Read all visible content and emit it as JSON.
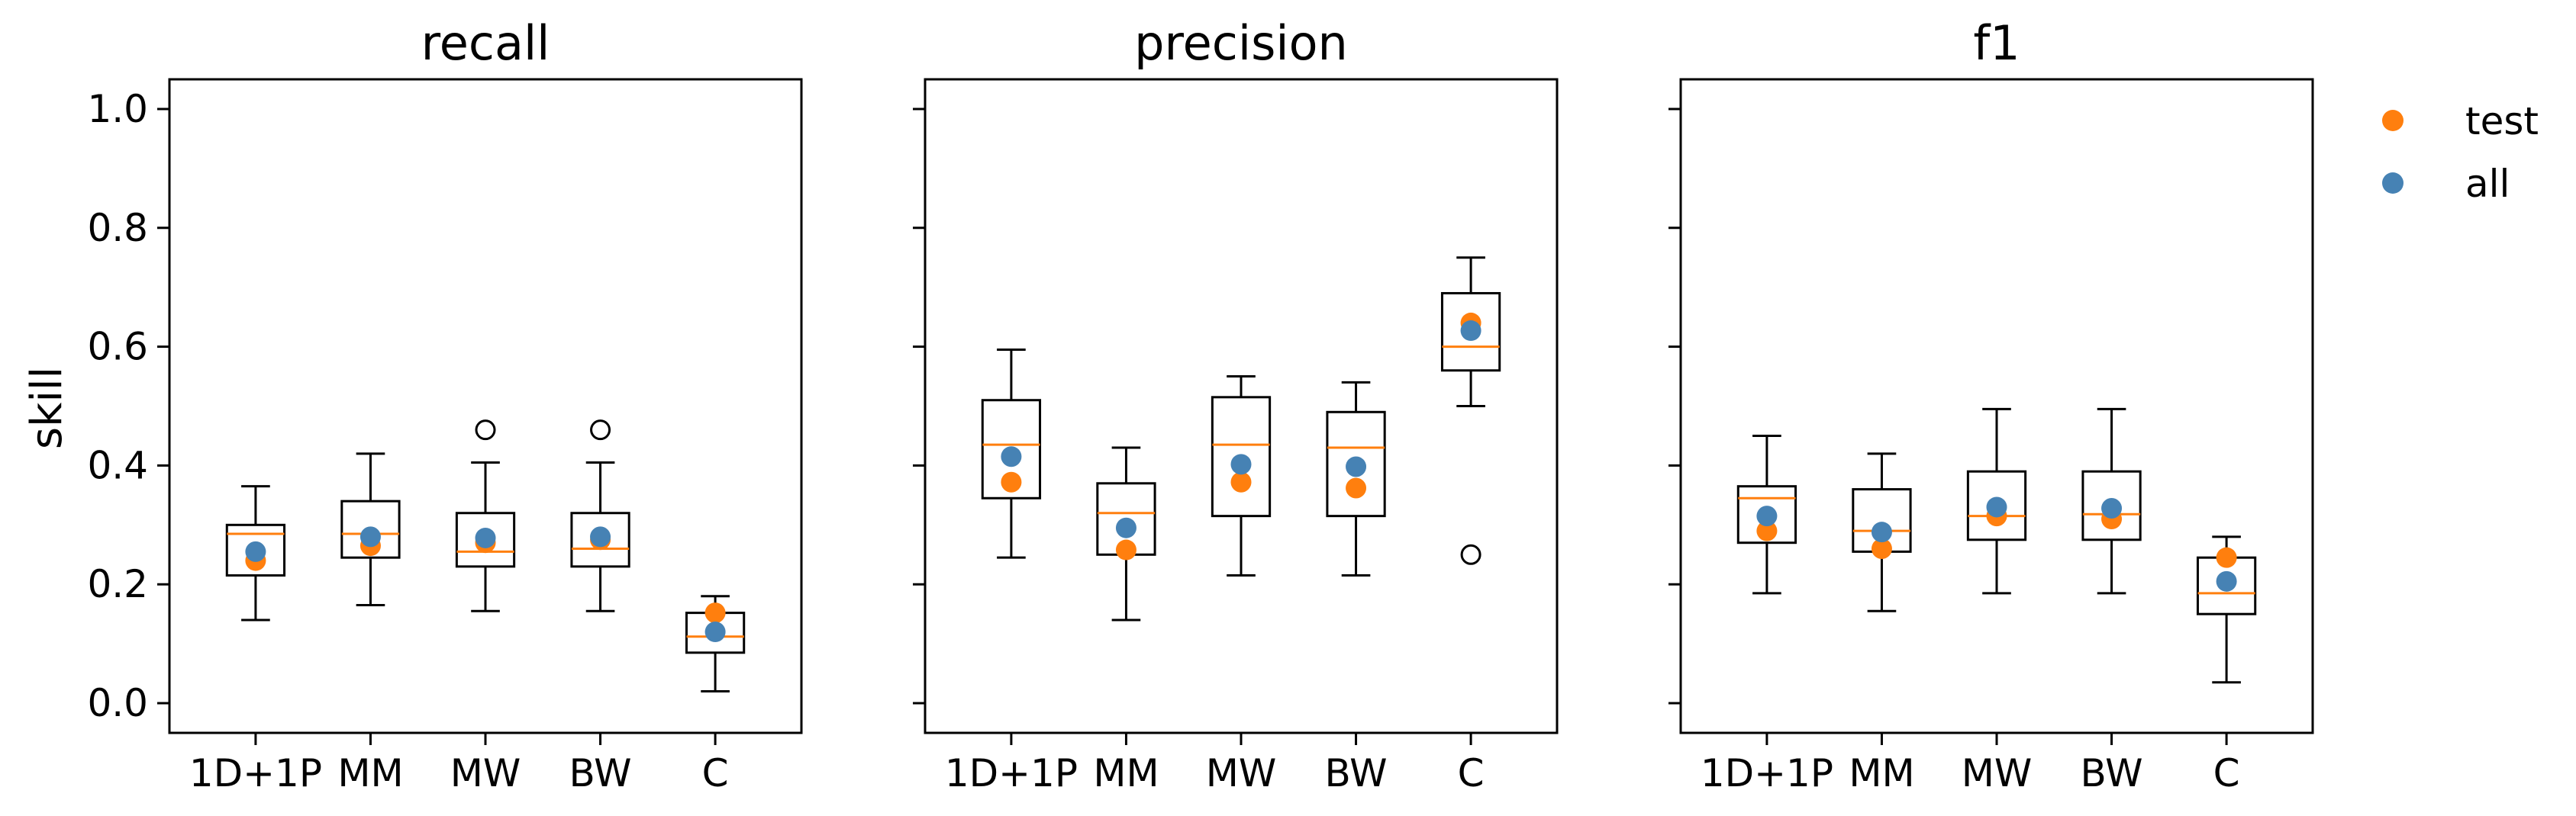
{
  "chart_data": {
    "type": "box",
    "ylabel": "skill",
    "ylim": [
      -0.05,
      1.05
    ],
    "yticks": [
      0.0,
      0.2,
      0.4,
      0.6,
      0.8,
      1.0
    ],
    "grid": false,
    "legend": {
      "placement": "outside-right",
      "entries": [
        {
          "name": "test",
          "color": "#ff7f0e"
        },
        {
          "name": "all",
          "color": "#4682b4"
        }
      ]
    },
    "colors": {
      "box": "#000000",
      "median": "#ff7f0e",
      "test": "#ff7f0e",
      "all": "#4682b4"
    },
    "categories": [
      "1D+1P",
      "MM",
      "MW",
      "BW",
      "C"
    ],
    "panels": [
      {
        "title": "recall",
        "boxes": [
          {
            "whislo": 0.14,
            "q1": 0.215,
            "med": 0.285,
            "q3": 0.3,
            "whishi": 0.365,
            "fliers": [],
            "test": 0.24,
            "all": 0.255
          },
          {
            "whislo": 0.165,
            "q1": 0.245,
            "med": 0.285,
            "q3": 0.34,
            "whishi": 0.42,
            "fliers": [],
            "test": 0.265,
            "all": 0.28
          },
          {
            "whislo": 0.155,
            "q1": 0.23,
            "med": 0.255,
            "q3": 0.32,
            "whishi": 0.405,
            "fliers": [
              0.46
            ],
            "test": 0.27,
            "all": 0.278
          },
          {
            "whislo": 0.155,
            "q1": 0.23,
            "med": 0.26,
            "q3": 0.32,
            "whishi": 0.405,
            "fliers": [
              0.46
            ],
            "test": 0.275,
            "all": 0.28
          },
          {
            "whislo": 0.02,
            "q1": 0.085,
            "med": 0.112,
            "q3": 0.152,
            "whishi": 0.18,
            "fliers": [],
            "test": 0.152,
            "all": 0.12
          }
        ]
      },
      {
        "title": "precision",
        "boxes": [
          {
            "whislo": 0.245,
            "q1": 0.345,
            "med": 0.435,
            "q3": 0.51,
            "whishi": 0.595,
            "fliers": [],
            "test": 0.372,
            "all": 0.415
          },
          {
            "whislo": 0.14,
            "q1": 0.25,
            "med": 0.32,
            "q3": 0.37,
            "whishi": 0.43,
            "fliers": [],
            "test": 0.258,
            "all": 0.295
          },
          {
            "whislo": 0.215,
            "q1": 0.315,
            "med": 0.435,
            "q3": 0.515,
            "whishi": 0.55,
            "fliers": [],
            "test": 0.372,
            "all": 0.402
          },
          {
            "whislo": 0.215,
            "q1": 0.315,
            "med": 0.43,
            "q3": 0.49,
            "whishi": 0.54,
            "fliers": [],
            "test": 0.362,
            "all": 0.398
          },
          {
            "whislo": 0.5,
            "q1": 0.56,
            "med": 0.6,
            "q3": 0.69,
            "whishi": 0.75,
            "fliers": [
              0.25
            ],
            "test": 0.64,
            "all": 0.627
          }
        ]
      },
      {
        "title": "f1",
        "boxes": [
          {
            "whislo": 0.185,
            "q1": 0.27,
            "med": 0.345,
            "q3": 0.365,
            "whishi": 0.45,
            "fliers": [],
            "test": 0.29,
            "all": 0.315
          },
          {
            "whislo": 0.155,
            "q1": 0.255,
            "med": 0.29,
            "q3": 0.36,
            "whishi": 0.42,
            "fliers": [],
            "test": 0.26,
            "all": 0.288
          },
          {
            "whislo": 0.185,
            "q1": 0.275,
            "med": 0.315,
            "q3": 0.39,
            "whishi": 0.495,
            "fliers": [],
            "test": 0.315,
            "all": 0.33
          },
          {
            "whislo": 0.185,
            "q1": 0.275,
            "med": 0.318,
            "q3": 0.39,
            "whishi": 0.495,
            "fliers": [],
            "test": 0.31,
            "all": 0.328
          },
          {
            "whislo": 0.035,
            "q1": 0.15,
            "med": 0.185,
            "q3": 0.245,
            "whishi": 0.28,
            "fliers": [],
            "test": 0.245,
            "all": 0.205
          }
        ]
      }
    ]
  }
}
